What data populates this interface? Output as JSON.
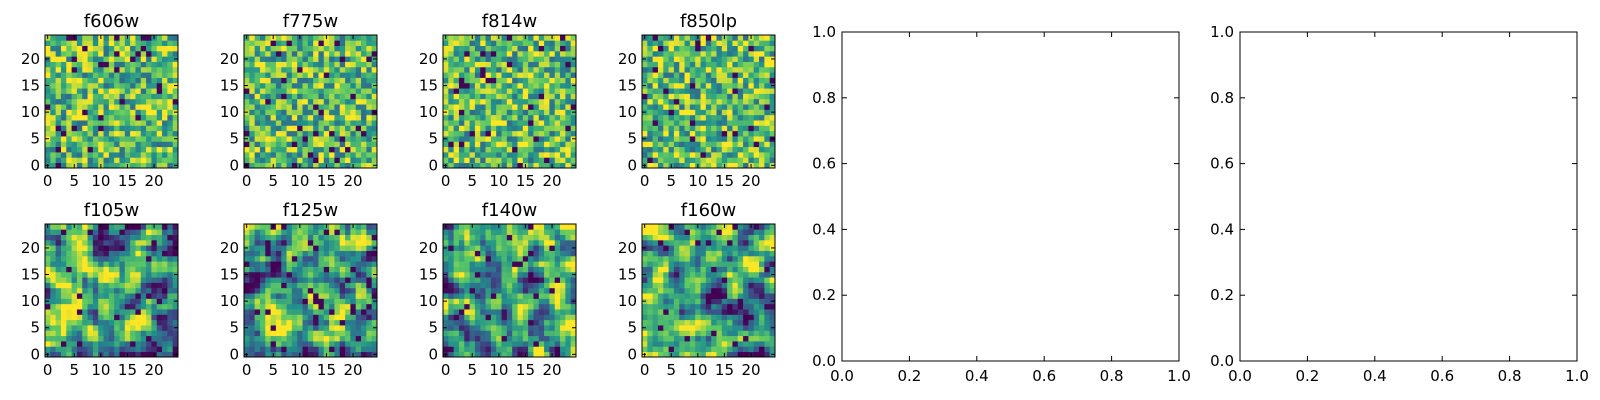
{
  "chart_data": {
    "type": "heatmap",
    "colormap": "viridis",
    "colormap_stops": [
      "#440154",
      "#3b528b",
      "#21918c",
      "#5ec962",
      "#fde725"
    ],
    "small_panels": [
      {
        "title": "f606w",
        "seed": 11
      },
      {
        "title": "f775w",
        "seed": 23
      },
      {
        "title": "f814w",
        "seed": 37
      },
      {
        "title": "f850lp",
        "seed": 41
      },
      {
        "title": "f105w",
        "seed": 53
      },
      {
        "title": "f125w",
        "seed": 67
      },
      {
        "title": "f140w",
        "seed": 79
      },
      {
        "title": "f160w",
        "seed": 83
      }
    ],
    "grid_size": 25,
    "x_ticks": [
      0,
      5,
      10,
      15,
      20
    ],
    "y_ticks": [
      0,
      5,
      10,
      15,
      20
    ],
    "empty_panels": [
      {
        "xlim": [
          0.0,
          1.0
        ],
        "ylim": [
          0.0,
          1.0
        ],
        "x_ticks": [
          "0.0",
          "0.2",
          "0.4",
          "0.6",
          "0.8",
          "1.0"
        ],
        "y_ticks": [
          "0.0",
          "0.2",
          "0.4",
          "0.6",
          "0.8",
          "1.0"
        ]
      },
      {
        "xlim": [
          0.0,
          1.0
        ],
        "ylim": [
          0.0,
          1.0
        ],
        "x_ticks": [
          "0.0",
          "0.2",
          "0.4",
          "0.6",
          "0.8",
          "1.0"
        ],
        "y_ticks": [
          "0.0",
          "0.2",
          "0.4",
          "0.6",
          "0.8",
          "1.0"
        ]
      }
    ]
  }
}
